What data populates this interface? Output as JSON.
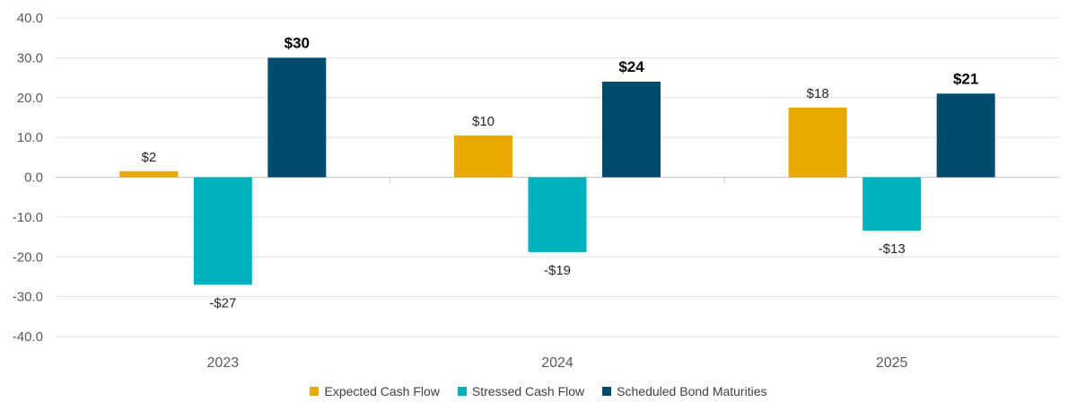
{
  "chart_data": {
    "type": "bar",
    "categories": [
      "2023",
      "2024",
      "2025"
    ],
    "series": [
      {
        "name": "Expected Cash Flow",
        "color": "#E8A900",
        "values": [
          1.5,
          10.5,
          17.5
        ],
        "labels": [
          "$2",
          "$10",
          "$18"
        ],
        "label_bold": false
      },
      {
        "name": "Stressed Cash Flow",
        "color": "#00B2BE",
        "values": [
          -27,
          -18.8,
          -13.4
        ],
        "labels": [
          "-$27",
          "-$19",
          "-$13"
        ],
        "label_bold": false
      },
      {
        "name": "Scheduled Bond Maturities",
        "color": "#004C6D",
        "values": [
          30,
          24,
          21
        ],
        "labels": [
          "$30",
          "$24",
          "$21"
        ],
        "label_bold": true
      }
    ],
    "ylim": [
      -40,
      40
    ],
    "yticks": [
      "40.0",
      "30.0",
      "20.0",
      "10.0",
      "0.0",
      "-10.0",
      "-20.0",
      "-30.0",
      "-40.0"
    ],
    "grid": true,
    "legend_position": "bottom-center",
    "title": "",
    "xlabel": "",
    "ylabel": ""
  }
}
